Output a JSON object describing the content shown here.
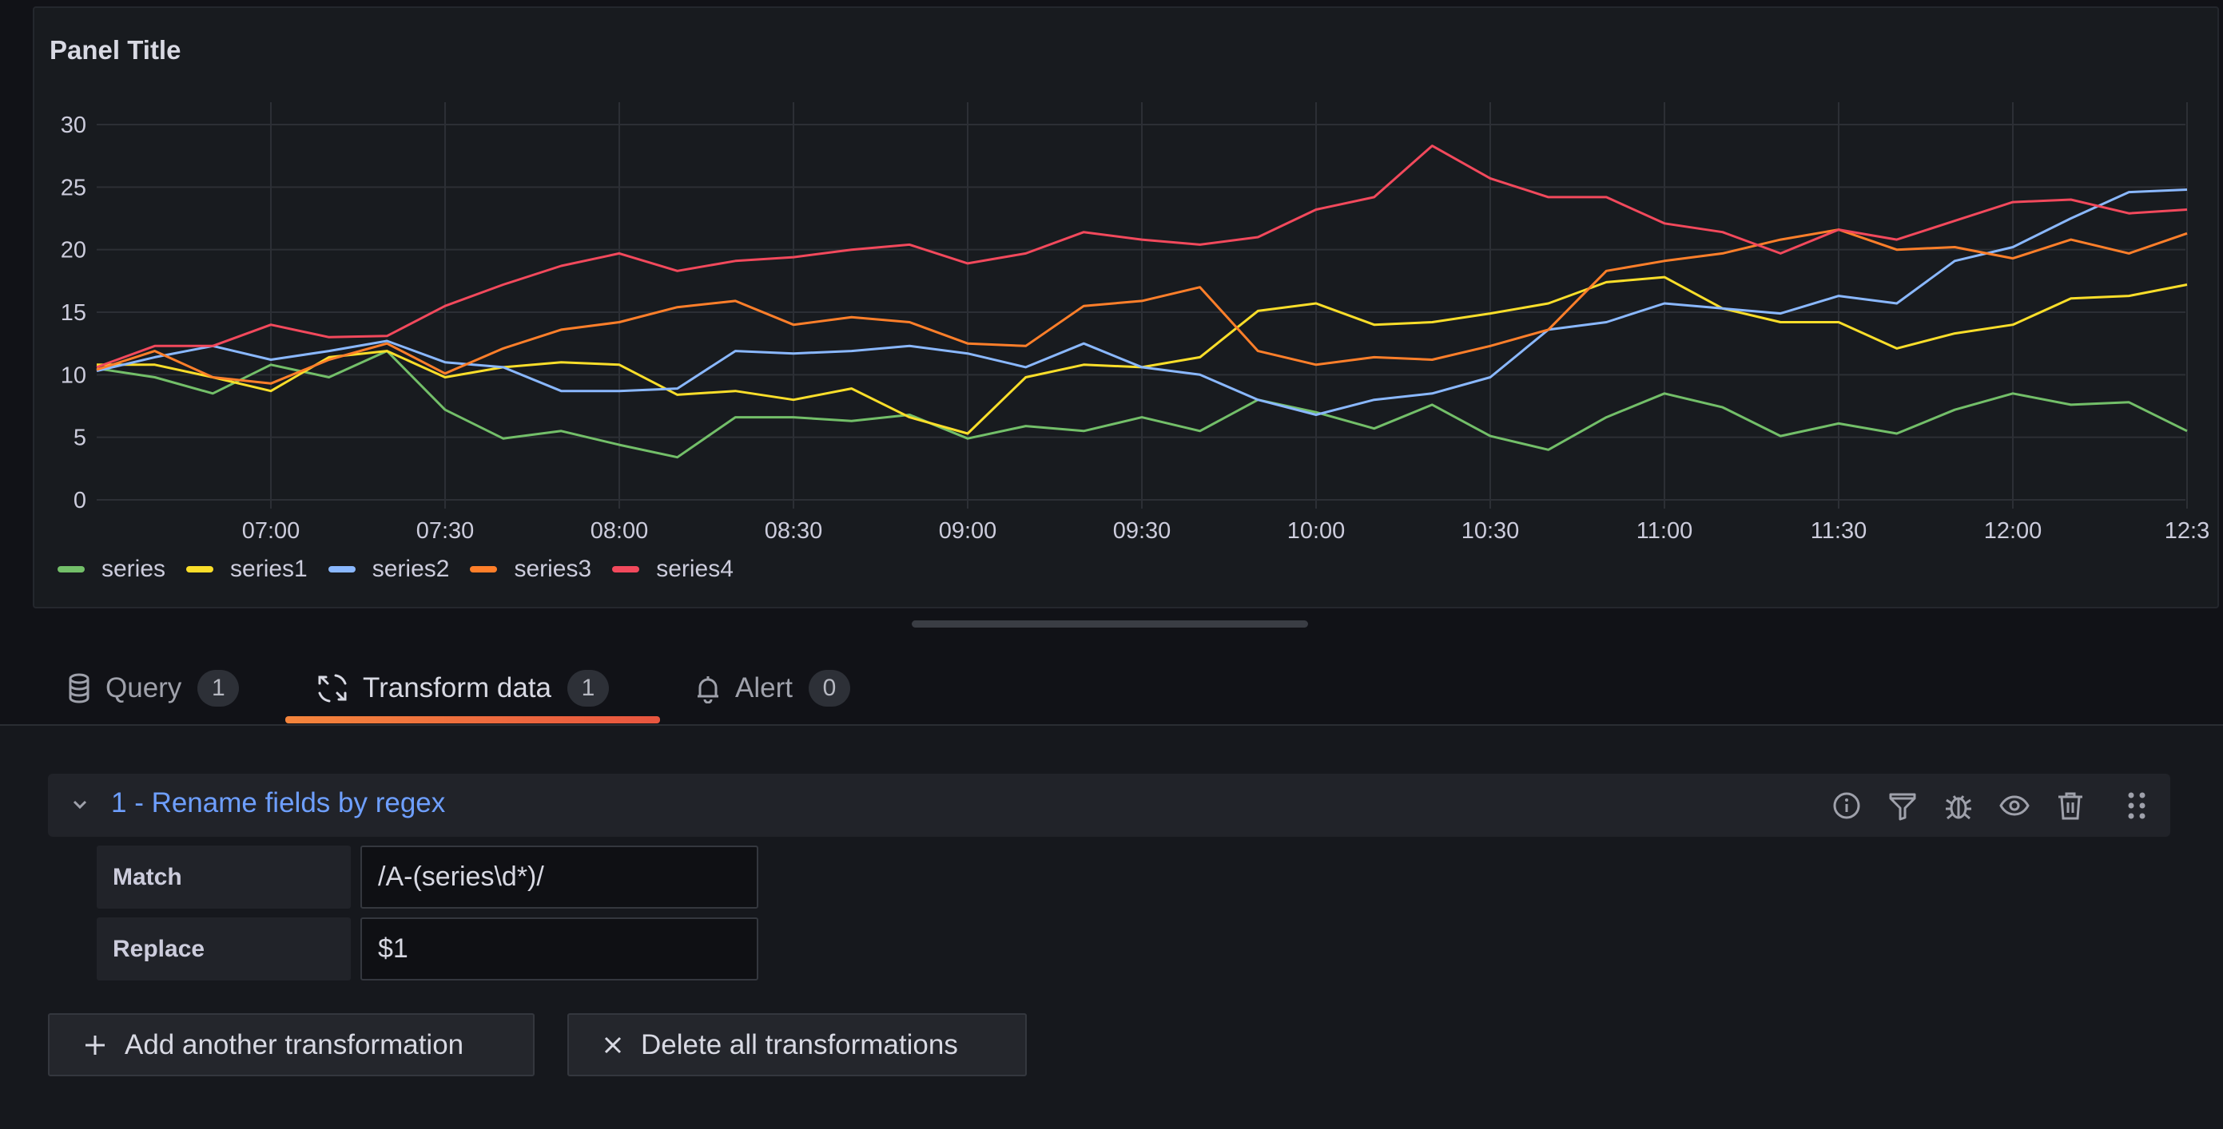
{
  "panel": {
    "title": "Panel Title"
  },
  "chart_data": {
    "type": "line",
    "title": "Panel Title",
    "x": [
      "06:30",
      "06:40",
      "06:50",
      "07:00",
      "07:10",
      "07:20",
      "07:30",
      "07:40",
      "07:50",
      "08:00",
      "08:10",
      "08:20",
      "08:30",
      "08:40",
      "08:50",
      "09:00",
      "09:10",
      "09:20",
      "09:30",
      "09:40",
      "09:50",
      "10:00",
      "10:10",
      "10:20",
      "10:30",
      "10:40",
      "10:50",
      "11:00",
      "11:10",
      "11:20",
      "11:30",
      "11:40",
      "11:50",
      "12:00",
      "12:10",
      "12:20",
      "12:30"
    ],
    "x_ticks": [
      "07:00",
      "07:30",
      "08:00",
      "08:30",
      "09:00",
      "09:30",
      "10:00",
      "10:30",
      "11:00",
      "11:30",
      "12:00",
      "12:3"
    ],
    "y_ticks": [
      "0",
      "5",
      "10",
      "15",
      "20",
      "25",
      "30"
    ],
    "ylim": [
      0,
      30
    ],
    "grid": true,
    "legend_placement": "bottom-left",
    "series": [
      {
        "name": "series",
        "color": "#73bf69",
        "values": [
          10.5,
          9.8,
          8.5,
          10.8,
          9.8,
          11.9,
          7.2,
          4.9,
          5.5,
          4.4,
          3.4,
          6.6,
          6.6,
          6.3,
          6.8,
          4.9,
          5.9,
          5.5,
          6.6,
          5.5,
          8,
          7,
          5.7,
          7.6,
          5.1,
          4,
          6.6,
          8.5,
          7.4,
          5.1,
          6.1,
          5.3,
          7.2,
          8.5,
          7.6,
          7.8,
          5.5
        ]
      },
      {
        "name": "series1",
        "color": "#fade2a",
        "values": [
          10.8,
          10.8,
          9.8,
          8.7,
          11.4,
          11.9,
          9.8,
          10.6,
          11,
          10.8,
          8.4,
          8.7,
          8,
          8.9,
          6.6,
          5.3,
          9.8,
          10.8,
          10.6,
          11.4,
          15.1,
          15.7,
          14,
          14.2,
          14.9,
          15.7,
          17.4,
          17.8,
          15.3,
          14.2,
          14.2,
          12.1,
          13.3,
          14,
          16.1,
          16.3,
          17.2
        ]
      },
      {
        "name": "series2",
        "color": "#8ab8ff",
        "values": [
          10.3,
          11.4,
          12.3,
          11.2,
          11.9,
          12.7,
          11,
          10.6,
          8.7,
          8.7,
          8.9,
          11.9,
          11.7,
          11.9,
          12.3,
          11.7,
          10.6,
          12.5,
          10.6,
          10,
          8,
          6.8,
          8,
          8.5,
          9.8,
          13.6,
          14.2,
          15.7,
          15.3,
          14.9,
          16.3,
          15.7,
          19.1,
          20.2,
          22.5,
          24.6,
          24.8
        ]
      },
      {
        "name": "series3",
        "color": "#ff7f2a",
        "values": [
          10.4,
          11.9,
          9.8,
          9.3,
          11.2,
          12.5,
          10.1,
          12.1,
          13.6,
          14.2,
          15.4,
          15.9,
          14,
          14.6,
          14.2,
          12.5,
          12.3,
          15.5,
          15.9,
          17,
          11.9,
          10.8,
          11.4,
          11.2,
          12.3,
          13.6,
          18.3,
          19.1,
          19.7,
          20.8,
          21.6,
          20,
          20.2,
          19.3,
          20.8,
          19.7,
          21.3
        ]
      },
      {
        "name": "series4",
        "color": "#f2495c",
        "values": [
          10.6,
          12.3,
          12.3,
          14,
          13,
          13.1,
          15.5,
          17.2,
          18.7,
          19.7,
          18.3,
          19.1,
          19.4,
          20,
          20.4,
          18.9,
          19.7,
          21.4,
          20.8,
          20.4,
          21,
          23.2,
          24.2,
          28.3,
          25.7,
          24.2,
          24.2,
          22.1,
          21.4,
          19.7,
          21.6,
          20.8,
          22.3,
          23.8,
          24,
          22.9,
          23.2
        ]
      }
    ]
  },
  "tabs": [
    {
      "label": "Query",
      "count": "1",
      "icon": "database-icon"
    },
    {
      "label": "Transform data",
      "count": "1",
      "icon": "transform-icon",
      "active": true
    },
    {
      "label": "Alert",
      "count": "0",
      "icon": "bell-icon"
    }
  ],
  "transformation": {
    "title": "1 - Rename fields by regex",
    "actions": [
      "info-icon",
      "filter-icon",
      "bug-icon",
      "eye-icon",
      "trash-icon",
      "drag-handle-icon"
    ],
    "fields": [
      {
        "label": "Match",
        "value": "/A-(series\\d*)/"
      },
      {
        "label": "Replace",
        "value": "$1"
      }
    ]
  },
  "buttons": {
    "add": "Add another transformation",
    "delete_all": "Delete all transformations"
  },
  "colors": {
    "accent": "#6e9fff",
    "tab_underline": "#f5853c",
    "background": "#111217"
  }
}
